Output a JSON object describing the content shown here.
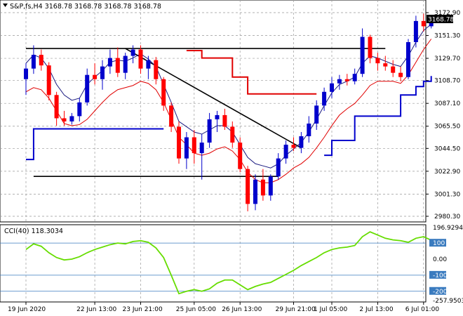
{
  "header": {
    "symbol_line": "S&P,fs,H4  3168.78 3168.78 3168.78 3168.78",
    "menu_icon": "triangle-down-icon"
  },
  "price_axis": {
    "labels": [
      "3172.90",
      "3151.30",
      "3129.70",
      "3108.70",
      "3087.10",
      "3065.50",
      "3044.50",
      "3022.90",
      "3001.30",
      "2980.30"
    ],
    "current_price": "3168.78"
  },
  "indicator": {
    "label": "CCI(40) 118.3034",
    "axis_labels": [
      "196.9294",
      "100",
      "0.00",
      "-100",
      "-200",
      "-257.9503"
    ],
    "level_100": "100",
    "level_minus_100": "-100",
    "level_minus_200": "-200"
  },
  "time_axis": {
    "labels": [
      "19 Jun 2020",
      "22 Jun 13:00",
      "23 Jun 21:00",
      "25 Jun 05:00",
      "26 Jun 13:00",
      "29 Jun 21:00",
      "1 Jul 05:00",
      "2 Jul 13:00",
      "6 Jul 01:00"
    ]
  },
  "colors": {
    "bull": "#0000cc",
    "bear": "#ff0000",
    "upper_band": "#1a1a80",
    "lower_band": "#e00000",
    "trail_red": "#e00000",
    "trail_blue": "#0000cc",
    "cci": "#66dd00",
    "level_line": "#3a7bbf"
  },
  "chart_data": {
    "type": "candlestick",
    "ylim": [
      2980.3,
      3172.9
    ],
    "candles": [
      [
        3110,
        3125,
        3095,
        3120
      ],
      [
        3120,
        3142,
        3115,
        3133
      ],
      [
        3133,
        3138,
        3118,
        3123
      ],
      [
        3123,
        3126,
        3090,
        3095
      ],
      [
        3095,
        3098,
        3066,
        3073
      ],
      [
        3073,
        3080,
        3066,
        3070
      ],
      [
        3070,
        3078,
        3067,
        3075
      ],
      [
        3075,
        3092,
        3070,
        3088
      ],
      [
        3088,
        3120,
        3085,
        3114
      ],
      [
        3114,
        3125,
        3105,
        3110
      ],
      [
        3110,
        3128,
        3100,
        3122
      ],
      [
        3122,
        3138,
        3115,
        3130
      ],
      [
        3130,
        3140,
        3112,
        3116
      ],
      [
        3116,
        3135,
        3110,
        3132
      ],
      [
        3132,
        3142,
        3125,
        3138
      ],
      [
        3138,
        3142,
        3115,
        3120
      ],
      [
        3120,
        3132,
        3110,
        3128
      ],
      [
        3128,
        3131,
        3105,
        3110
      ],
      [
        3110,
        3112,
        3080,
        3085
      ],
      [
        3085,
        3088,
        3060,
        3065
      ],
      [
        3065,
        3070,
        3030,
        3035
      ],
      [
        3035,
        3060,
        3025,
        3055
      ],
      [
        3055,
        3062,
        3030,
        3040
      ],
      [
        3040,
        3058,
        3015,
        3050
      ],
      [
        3050,
        3078,
        3045,
        3072
      ],
      [
        3072,
        3080,
        3060,
        3076
      ],
      [
        3076,
        3082,
        3062,
        3065
      ],
      [
        3065,
        3070,
        3045,
        3050
      ],
      [
        3050,
        3055,
        3022,
        3025
      ],
      [
        3025,
        3028,
        2985,
        2992
      ],
      [
        2992,
        3020,
        2986,
        3015
      ],
      [
        3015,
        3025,
        2995,
        3000
      ],
      [
        3000,
        3020,
        2995,
        3018
      ],
      [
        3018,
        3040,
        3015,
        3035
      ],
      [
        3035,
        3052,
        3030,
        3048
      ],
      [
        3048,
        3055,
        3042,
        3045
      ],
      [
        3045,
        3060,
        3040,
        3056
      ],
      [
        3056,
        3075,
        3050,
        3068
      ],
      [
        3068,
        3090,
        3062,
        3085
      ],
      [
        3085,
        3102,
        3080,
        3098
      ],
      [
        3098,
        3112,
        3092,
        3106
      ],
      [
        3106,
        3114,
        3100,
        3110
      ],
      [
        3110,
        3115,
        3104,
        3108
      ],
      [
        3108,
        3120,
        3105,
        3115
      ],
      [
        3115,
        3158,
        3112,
        3150
      ],
      [
        3150,
        3152,
        3125,
        3130
      ],
      [
        3130,
        3135,
        3118,
        3125
      ],
      [
        3125,
        3132,
        3118,
        3122
      ],
      [
        3122,
        3128,
        3112,
        3116
      ],
      [
        3116,
        3122,
        3108,
        3112
      ],
      [
        3112,
        3148,
        3110,
        3145
      ],
      [
        3145,
        3170,
        3140,
        3165
      ],
      [
        3165,
        3172,
        3155,
        3160
      ],
      [
        3160,
        3170,
        3158,
        3168
      ]
    ],
    "upper_band": [
      3125,
      3133,
      3130,
      3120,
      3105,
      3095,
      3090,
      3092,
      3105,
      3112,
      3118,
      3126,
      3128,
      3127,
      3130,
      3134,
      3129,
      3122,
      3105,
      3088,
      3070,
      3065,
      3060,
      3058,
      3062,
      3066,
      3066,
      3060,
      3048,
      3036,
      3030,
      3028,
      3026,
      3030,
      3038,
      3044,
      3050,
      3060,
      3072,
      3085,
      3097,
      3105,
      3108,
      3112,
      3125,
      3132,
      3130,
      3127,
      3124,
      3122,
      3132,
      3145,
      3156,
      3162
    ],
    "lower_band": [
      3098,
      3102,
      3100,
      3092,
      3080,
      3068,
      3066,
      3067,
      3072,
      3080,
      3088,
      3095,
      3100,
      3102,
      3104,
      3108,
      3106,
      3100,
      3088,
      3072,
      3055,
      3048,
      3040,
      3038,
      3040,
      3044,
      3046,
      3042,
      3034,
      3022,
      3015,
      3012,
      3012,
      3015,
      3020,
      3026,
      3030,
      3036,
      3045,
      3055,
      3066,
      3076,
      3082,
      3087,
      3095,
      3104,
      3108,
      3108,
      3108,
      3106,
      3114,
      3126,
      3138,
      3148
    ],
    "trail_red": [
      null,
      null,
      null,
      null,
      null,
      null,
      null,
      null,
      null,
      null,
      null,
      null,
      null,
      null,
      null,
      null,
      null,
      null,
      null,
      null,
      null,
      3137,
      3137,
      3130,
      3130,
      3130,
      3130,
      3112,
      3112,
      3096,
      3096,
      3096,
      3096,
      3096,
      3096,
      3096,
      3096,
      3096,
      3096,
      null,
      null,
      null,
      null,
      null,
      null,
      null,
      null,
      null,
      null,
      null,
      null,
      null,
      null,
      null
    ],
    "trail_blue": [
      3034,
      3063,
      3063,
      3063,
      3063,
      3063,
      3063,
      3063,
      3063,
      3063,
      3063,
      3063,
      3063,
      3063,
      3063,
      3063,
      3063,
      3063,
      3063,
      null,
      null,
      null,
      null,
      null,
      null,
      null,
      null,
      null,
      null,
      null,
      null,
      null,
      null,
      null,
      null,
      null,
      null,
      null,
      null,
      3038,
      3052,
      3052,
      3052,
      3075,
      3075,
      3075,
      3075,
      3075,
      3075,
      3095,
      3095,
      3103,
      3108,
      3113
    ],
    "trendlines": [
      {
        "from": [
          0,
          3139
        ],
        "to": [
          47,
          3139
        ]
      },
      {
        "from": [
          13,
          3139
        ],
        "to": [
          36,
          3045
        ]
      },
      {
        "from": [
          1,
          3018
        ],
        "to": [
          33,
          3018
        ]
      }
    ],
    "cci": [
      60,
      95,
      80,
      40,
      10,
      -5,
      0,
      15,
      40,
      60,
      75,
      90,
      100,
      95,
      110,
      115,
      105,
      70,
      10,
      -100,
      -215,
      -200,
      -190,
      -200,
      -185,
      -150,
      -130,
      -130,
      -160,
      -190,
      -170,
      -155,
      -145,
      -120,
      -95,
      -70,
      -40,
      -15,
      10,
      40,
      60,
      70,
      75,
      85,
      140,
      170,
      150,
      130,
      120,
      115,
      105,
      130,
      140,
      118
    ],
    "cci_range": [
      -257.9503,
      196.9294
    ]
  }
}
